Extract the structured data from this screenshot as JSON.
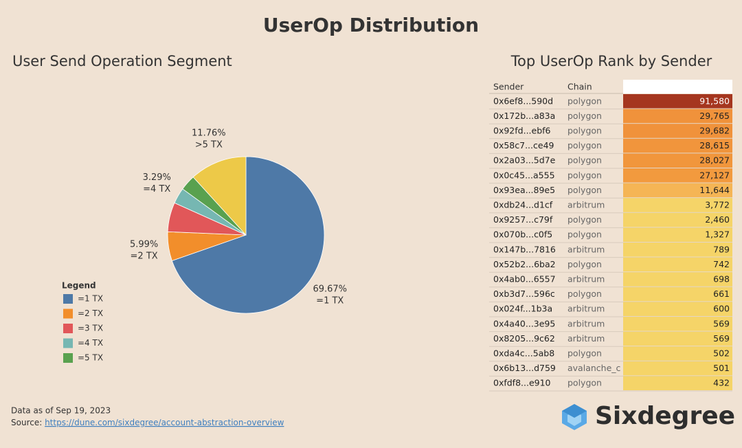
{
  "title": "UserOp Distribution",
  "chart_data": [
    {
      "type": "pie",
      "title": "User Send Operation Segment",
      "categories": [
        "=1 TX",
        "=2 TX",
        "=3 TX",
        "=4 TX",
        "=5 TX",
        ">5 TX"
      ],
      "values": [
        69.67,
        5.99,
        6.06,
        3.29,
        3.23,
        11.76
      ],
      "value_labels": [
        "69.67%",
        "5.99%",
        null,
        "3.29%",
        null,
        "11.76%"
      ],
      "colors": [
        "#4e79a7",
        "#f28e2b",
        "#e15759",
        "#76b7b2",
        "#59a14f",
        "#edc948"
      ],
      "legend": {
        "title": "Legend",
        "labels": [
          "=1 TX",
          "=2 TX",
          "=3 TX",
          "=4 TX",
          "=5 TX"
        ]
      }
    },
    {
      "type": "highlight-table",
      "title": "Top UserOp Rank by Sender",
      "columns": [
        "Sender",
        "Chain"
      ],
      "rows": [
        [
          "0x6ef8...590d",
          "polygon"
        ],
        [
          "0x172b...a83a",
          "polygon"
        ],
        [
          "0x92fd...ebf6",
          "polygon"
        ],
        [
          "0x58c7...ce49",
          "polygon"
        ],
        [
          "0x2a03...5d7e",
          "polygon"
        ],
        [
          "0x0c45...a555",
          "polygon"
        ],
        [
          "0x93ea...89e5",
          "polygon"
        ],
        [
          "0xdb24...d1cf",
          "arbitrum"
        ],
        [
          "0x9257...c79f",
          "polygon"
        ],
        [
          "0x070b...c0f5",
          "polygon"
        ],
        [
          "0x147b...7816",
          "arbitrum"
        ],
        [
          "0x52b2...6ba2",
          "polygon"
        ],
        [
          "0x4ab0...6557",
          "arbitrum"
        ],
        [
          "0xb3d7...596c",
          "polygon"
        ],
        [
          "0x024f...1b3a",
          "arbitrum"
        ],
        [
          "0x4a40...3e95",
          "arbitrum"
        ],
        [
          "0x8205...9c62",
          "arbitrum"
        ],
        [
          "0xda4c...5ab8",
          "polygon"
        ],
        [
          "0x6b13...d759",
          "avalanche_c"
        ],
        [
          "0xfdf8...e910",
          "polygon"
        ]
      ],
      "values": [
        91580,
        29765,
        29682,
        28615,
        28027,
        27127,
        11644,
        3772,
        2460,
        1327,
        789,
        742,
        698,
        661,
        600,
        569,
        569,
        502,
        501,
        432
      ],
      "value_labels": [
        "91,580",
        "29,765",
        "29,682",
        "28,615",
        "28,027",
        "27,127",
        "11,644",
        "3,772",
        "2,460",
        "1,327",
        "789",
        "742",
        "698",
        "661",
        "600",
        "569",
        "569",
        "502",
        "501",
        "432"
      ],
      "colors": [
        "#a5361f",
        "#f0923b",
        "#f0923b",
        "#f1953c",
        "#f1963c",
        "#f29a3e",
        "#f5b555",
        "#f5d468",
        "#f5d468",
        "#f5d468",
        "#f5d468",
        "#f5d468",
        "#f5d468",
        "#f5d468",
        "#f5d468",
        "#f5d468",
        "#f5d468",
        "#f5d468",
        "#f5d468",
        "#f5d468"
      ]
    }
  ],
  "footer": {
    "date_label": "Data as of  Sep 19, 2023",
    "source_label": "Source: ",
    "source_link": "https://dune.com/sixdegree/account-abstraction-overview",
    "brand": "Sixdegree"
  }
}
